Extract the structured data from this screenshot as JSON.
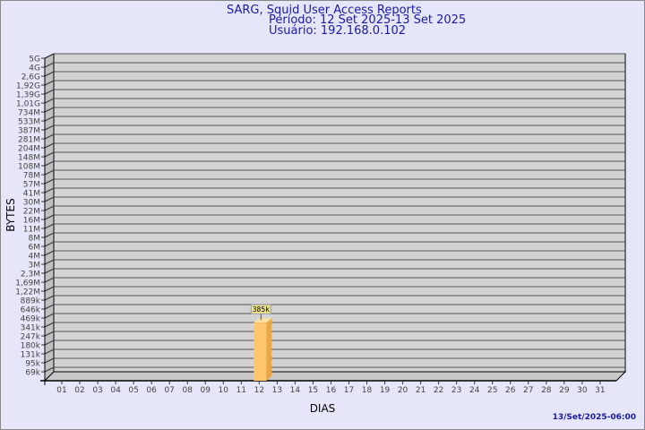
{
  "header": {
    "title": "SARG, Squid User Access Reports",
    "period": "Período: 12 Set 2025-13 Set 2025",
    "user": "Usuário: 192.168.0.102"
  },
  "footer": {
    "timestamp": "13/Set/2025-06:00"
  },
  "colors": {
    "background": "#e6e6fa",
    "plot": "#d3d3d3",
    "bar": "#ffc66e",
    "title": "#1a1aa6"
  },
  "chart_data": {
    "type": "bar",
    "xlabel": "DIAS",
    "ylabel": "BYTES",
    "y_scale": "log",
    "grid": true,
    "y_ticks": [
      "5G",
      "4G",
      "2,6G",
      "1,92G",
      "1,39G",
      "1,01G",
      "734M",
      "533M",
      "387M",
      "281M",
      "204M",
      "148M",
      "108M",
      "78M",
      "57M",
      "41M",
      "30M",
      "22M",
      "16M",
      "11M",
      "8M",
      "6M",
      "4M",
      "3M",
      "2,3M",
      "1,69M",
      "1,22M",
      "889k",
      "646k",
      "469k",
      "341k",
      "247k",
      "180k",
      "131k",
      "95k",
      "69k"
    ],
    "categories": [
      "01",
      "02",
      "03",
      "04",
      "05",
      "06",
      "07",
      "08",
      "09",
      "10",
      "11",
      "12",
      "13",
      "14",
      "15",
      "16",
      "17",
      "18",
      "19",
      "20",
      "21",
      "22",
      "23",
      "24",
      "25",
      "26",
      "27",
      "28",
      "29",
      "30",
      "31"
    ],
    "bars": [
      {
        "day": "12",
        "value": 385000,
        "label": "385k"
      }
    ]
  }
}
